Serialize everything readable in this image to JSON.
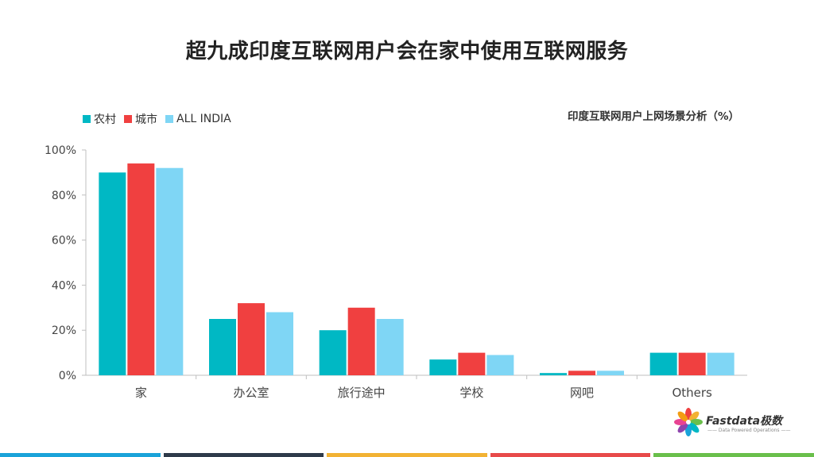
{
  "slide": {
    "title": "超九成印度互联网用户会在家中使用互联网服务",
    "caption": "印度互联网用户上网场景分析（%）"
  },
  "legend": [
    {
      "label": "农村",
      "color": "#00b8c4"
    },
    {
      "label": "城市",
      "color": "#f04040"
    },
    {
      "label": "ALL INDIA",
      "color": "#7fd6f5"
    }
  ],
  "chart_data": {
    "type": "bar",
    "title": "印度互联网用户上网场景分析（%）",
    "categories": [
      "家",
      "办公室",
      "旅行途中",
      "学校",
      "网吧",
      "Others"
    ],
    "series": [
      {
        "name": "农村",
        "values": [
          90,
          25,
          20,
          7,
          1,
          10
        ],
        "color": "#00b8c4"
      },
      {
        "name": "城市",
        "values": [
          94,
          32,
          30,
          10,
          2,
          10
        ],
        "color": "#f04040"
      },
      {
        "name": "ALL INDIA",
        "values": [
          92,
          28,
          25,
          9,
          2,
          10
        ],
        "color": "#7fd6f5"
      }
    ],
    "y_ticks": [
      "0%",
      "20%",
      "40%",
      "60%",
      "80%",
      "100%"
    ],
    "ylim": [
      0,
      100
    ],
    "grid": false,
    "legend_position": "top-left"
  },
  "logo": {
    "name": "Fastdata极数",
    "tagline": "—— Data Powered Operations ——"
  },
  "footer_colors": [
    "#1aa3d9",
    "#2e3a4a",
    "#f2b233",
    "#e84a4a",
    "#6abf4b"
  ]
}
